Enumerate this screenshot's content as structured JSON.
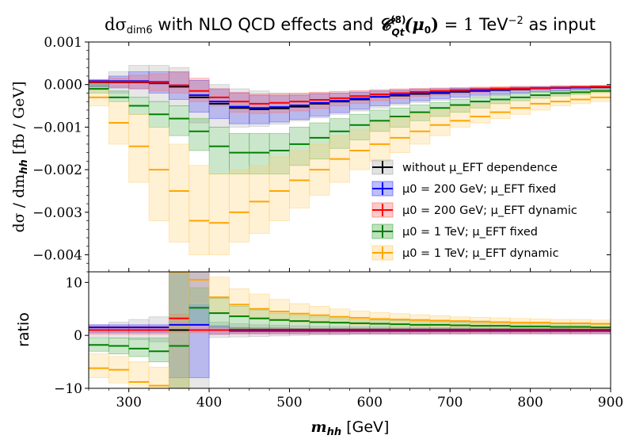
{
  "chart_data": {
    "type": "step-band",
    "title": "dσ_dim6 with NLO QCD effects and C_Qt^(8)(μ0) = 1 TeV^-2 as input",
    "xlabel": "m_hh [GeV]",
    "top_panel": {
      "ylabel": "dσ / dm_hh   [fb / GeV]",
      "ylim": [
        -0.0044,
        0.001
      ],
      "yticks": [
        0.001,
        0.0,
        -0.001,
        -0.002,
        -0.003,
        -0.004
      ],
      "ytick_labels": [
        "0.001",
        "0.000",
        "−0.001",
        "−0.002",
        "−0.003",
        "−0.004"
      ]
    },
    "ratio_panel": {
      "ylabel": "ratio",
      "ylim": [
        -10,
        12
      ],
      "yticks": [
        10,
        0,
        -10
      ],
      "ytick_labels": [
        "10",
        "0",
        "−10"
      ]
    },
    "xlim": [
      250,
      900
    ],
    "xticks": [
      300,
      400,
      500,
      600,
      700,
      800,
      900
    ],
    "xtick_labels": [
      "300",
      "400",
      "500",
      "600",
      "700",
      "800",
      "900"
    ],
    "bin_edges": [
      250,
      275,
      300,
      325,
      350,
      375,
      400,
      425,
      450,
      475,
      500,
      525,
      550,
      575,
      600,
      625,
      650,
      675,
      700,
      725,
      750,
      775,
      800,
      825,
      850,
      875,
      900
    ],
    "series": [
      {
        "name": "without μ_EFT dependence",
        "color": "#000000",
        "band_color": "#aaaaaa",
        "values": [
          5e-05,
          5e-05,
          5e-05,
          3e-05,
          -5e-05,
          -0.0003,
          -0.00045,
          -0.00055,
          -0.00058,
          -0.00056,
          -0.00052,
          -0.00045,
          -0.0004,
          -0.00035,
          -0.00029,
          -0.00026,
          -0.00022,
          -0.0002,
          -0.00017,
          -0.00015,
          -0.00013,
          -0.00011,
          -9e-05,
          -8e-05,
          -7e-05,
          -6e-05
        ],
        "lower": [
          -0.0001,
          -0.0002,
          -0.0003,
          -0.0004,
          -0.0005,
          -0.0009,
          -0.001,
          -0.001,
          -0.00098,
          -0.00093,
          -0.00085,
          -0.00078,
          -0.0007,
          -0.00062,
          -0.00055,
          -0.00048,
          -0.00042,
          -0.00037,
          -0.00032,
          -0.00028,
          -0.00024,
          -0.0002,
          -0.00017,
          -0.00015,
          -0.00013,
          -0.00011
        ],
        "upper": [
          0.0001,
          0.0003,
          0.00045,
          0.00045,
          0.0004,
          0.0001,
          0.0,
          -0.0001,
          -0.00015,
          -0.0002,
          -0.00022,
          -0.0002,
          -0.0002,
          -0.00017,
          -0.00015,
          -0.00014,
          -0.00012,
          -0.0001,
          -9e-05,
          -8e-05,
          -7e-05,
          -6e-05,
          -5e-05,
          -4e-05,
          -3e-05,
          -3e-05
        ],
        "ratio": [
          1,
          1,
          1,
          1,
          1,
          1,
          1,
          1,
          1,
          1,
          1,
          1,
          1,
          1,
          1,
          1,
          1,
          1,
          1,
          1,
          1,
          1,
          1,
          1,
          1,
          1
        ],
        "ratio_lower": [
          -0.3,
          -0.5,
          -0.8,
          -1.2,
          -10,
          -10,
          -0.4,
          -0.3,
          -0.2,
          -0.1,
          0,
          0.1,
          0.1,
          0.2,
          0.2,
          0.2,
          0.2,
          0.25,
          0.25,
          0.3,
          0.3,
          0.3,
          0.3,
          0.3,
          0.3,
          0.3
        ],
        "ratio_upper": [
          2.0,
          2.5,
          3.0,
          3.5,
          12,
          12,
          2.5,
          2.2,
          2.0,
          1.9,
          1.8,
          1.7,
          1.65,
          1.6,
          1.6,
          1.55,
          1.55,
          1.5,
          1.5,
          1.5,
          1.5,
          1.5,
          1.5,
          1.5,
          1.5,
          1.5
        ]
      },
      {
        "name": "μ0 = 200 GeV; μ_EFT fixed",
        "color": "#0000ff",
        "band_color": "#4444ff",
        "values": [
          8e-05,
          8e-05,
          8e-05,
          6e-05,
          -2e-05,
          -0.00025,
          -0.0004,
          -0.00052,
          -0.00055,
          -0.00053,
          -0.00049,
          -0.00043,
          -0.00038,
          -0.00033,
          -0.00028,
          -0.00024,
          -0.0002,
          -0.00018,
          -0.00016,
          -0.00014,
          -0.00012,
          -0.0001,
          -9e-05,
          -8e-05,
          -7e-05,
          -6e-05
        ],
        "lower": [
          -5e-05,
          -8e-05,
          -0.0001,
          -0.0002,
          -0.00035,
          -0.00065,
          -0.0008,
          -0.00092,
          -0.00092,
          -0.00088,
          -0.00082,
          -0.00074,
          -0.00066,
          -0.00058,
          -0.0005,
          -0.00044,
          -0.00038,
          -0.00033,
          -0.00029,
          -0.00025,
          -0.00022,
          -0.00019,
          -0.00016,
          -0.00014,
          -0.00012,
          -0.0001
        ],
        "upper": [
          0.00012,
          0.0002,
          0.0003,
          0.0003,
          0.0003,
          0.0001,
          -0.0001,
          -0.0002,
          -0.00025,
          -0.00026,
          -0.00025,
          -0.00022,
          -0.0002,
          -0.00018,
          -0.00015,
          -0.00013,
          -0.00011,
          -0.0001,
          -9e-05,
          -8e-05,
          -7e-05,
          -6e-05,
          -5e-05,
          -4e-05,
          -3e-05,
          -3e-05
        ],
        "ratio": [
          1.5,
          1.5,
          1.5,
          1.5,
          2.0,
          2.0,
          1.0,
          0.9,
          0.9,
          0.9,
          0.9,
          0.9,
          0.9,
          0.9,
          0.9,
          0.9,
          0.9,
          0.9,
          0.9,
          0.9,
          0.9,
          0.9,
          0.9,
          0.9,
          0.9,
          0.9
        ],
        "ratio_lower": [
          0.5,
          0.5,
          0.5,
          0.5,
          -8,
          -8,
          0.2,
          0.3,
          0.3,
          0.3,
          0.3,
          0.3,
          0.3,
          0.3,
          0.3,
          0.3,
          0.3,
          0.3,
          0.3,
          0.3,
          0.3,
          0.3,
          0.3,
          0.3,
          0.3,
          0.3
        ],
        "ratio_upper": [
          2.0,
          2.0,
          2.0,
          2.0,
          12,
          12,
          1.8,
          1.5,
          1.4,
          1.4,
          1.3,
          1.3,
          1.3,
          1.3,
          1.3,
          1.3,
          1.3,
          1.3,
          1.3,
          1.3,
          1.3,
          1.3,
          1.3,
          1.3,
          1.3,
          1.3
        ]
      },
      {
        "name": "μ0 = 200 GeV; μ_EFT dynamic",
        "color": "#ff0000",
        "band_color": "#ff6666",
        "values": [
          6e-05,
          6e-05,
          6e-05,
          4e-05,
          -2e-05,
          -0.00015,
          -0.0003,
          -0.0004,
          -0.00045,
          -0.00043,
          -0.0004,
          -0.00036,
          -0.00032,
          -0.00027,
          -0.00023,
          -0.0002,
          -0.00017,
          -0.00015,
          -0.00013,
          -0.00011,
          -0.0001,
          -9e-05,
          -8e-05,
          -7e-05,
          -6e-05,
          -5e-05
        ],
        "lower": [
          -3e-05,
          -5e-05,
          -0.0001,
          -0.00015,
          -0.0002,
          -0.0004,
          -0.0005,
          -0.00065,
          -0.00068,
          -0.00066,
          -0.00062,
          -0.00056,
          -0.0005,
          -0.00044,
          -0.00038,
          -0.00033,
          -0.00028,
          -0.00025,
          -0.00022,
          -0.00019,
          -0.00016,
          -0.00014,
          -0.00012,
          -0.0001,
          -9e-05,
          -8e-05
        ],
        "upper": [
          0.0001,
          0.00015,
          0.00022,
          0.00025,
          0.00028,
          0.00015,
          -0.0001,
          -0.00018,
          -0.00022,
          -0.00022,
          -0.0002,
          -0.00018,
          -0.00016,
          -0.00014,
          -0.00012,
          -0.0001,
          -9e-05,
          -8e-05,
          -7e-05,
          -6e-05,
          -5e-05,
          -4e-05,
          -4e-05,
          -3e-05,
          -3e-05,
          -2e-05
        ],
        "ratio": [
          1.0,
          1.0,
          1.0,
          1.0,
          3.2,
          1.0,
          1.0,
          0.8,
          0.8,
          0.8,
          0.8,
          0.8,
          0.8,
          0.8,
          0.8,
          0.8,
          0.8,
          0.8,
          0.8,
          0.8,
          0.8,
          0.8,
          0.8,
          0.8,
          0.8,
          0.8
        ],
        "ratio_lower": [
          0.2,
          0.2,
          0.2,
          0.2,
          0.5,
          0.5,
          0.2,
          0.3,
          0.3,
          0.3,
          0.3,
          0.3,
          0.3,
          0.3,
          0.3,
          0.3,
          0.3,
          0.3,
          0.3,
          0.3,
          0.3,
          0.3,
          0.3,
          0.3,
          0.3,
          0.3
        ],
        "ratio_upper": [
          1.8,
          1.8,
          1.8,
          1.8,
          4.0,
          2.0,
          1.5,
          1.3,
          1.3,
          1.3,
          1.3,
          1.3,
          1.3,
          1.3,
          1.3,
          1.3,
          1.3,
          1.3,
          1.3,
          1.3,
          1.3,
          1.3,
          1.3,
          1.3,
          1.3,
          1.3
        ]
      },
      {
        "name": "μ0 = 1 TeV; μ_EFT fixed",
        "color": "#008000",
        "band_color": "#44aa44",
        "values": [
          -0.0001,
          -0.0003,
          -0.0005,
          -0.0007,
          -0.0008,
          -0.0011,
          -0.00145,
          -0.0016,
          -0.0016,
          -0.00155,
          -0.0014,
          -0.00125,
          -0.0011,
          -0.00095,
          -0.00085,
          -0.00075,
          -0.00065,
          -0.00055,
          -0.00048,
          -0.0004,
          -0.00035,
          -0.0003,
          -0.00025,
          -0.0002,
          -0.00018,
          -0.00015
        ],
        "lower": [
          -0.0002,
          -0.0004,
          -0.0007,
          -0.001,
          -0.0012,
          -0.00155,
          -0.0021,
          -0.0021,
          -0.0021,
          -0.0021,
          -0.0019,
          -0.00175,
          -0.0015,
          -0.0013,
          -0.0011,
          -0.001,
          -0.00085,
          -0.00075,
          -0.00065,
          -0.00055,
          -0.00045,
          -0.00038,
          -0.00032,
          -0.00027,
          -0.00023,
          -0.00019
        ],
        "upper": [
          0.0,
          -0.00015,
          -0.0003,
          -0.0004,
          -0.0005,
          -0.0008,
          -0.001,
          -0.00115,
          -0.00115,
          -0.00115,
          -0.001,
          -0.0009,
          -0.0008,
          -0.0007,
          -0.0006,
          -0.00055,
          -0.00048,
          -0.00042,
          -0.00035,
          -0.0003,
          -0.00025,
          -0.00021,
          -0.00018,
          -0.00015,
          -0.00012,
          -0.0001
        ],
        "ratio": [
          -1.8,
          -2.0,
          -2.5,
          -3.0,
          -2.0,
          5.2,
          4.2,
          3.6,
          3.2,
          2.9,
          2.7,
          2.5,
          2.4,
          2.3,
          2.2,
          2.1,
          2.0,
          2.0,
          1.9,
          1.8,
          1.8,
          1.7,
          1.7,
          1.6,
          1.6,
          1.5
        ],
        "ratio_lower": [
          -3,
          -3.5,
          -4,
          -5,
          -10,
          2.0,
          1.5,
          1.3,
          1.2,
          1.1,
          1.1,
          1.0,
          1.0,
          1.0,
          0.9,
          0.9,
          0.9,
          0.9,
          0.9,
          0.8,
          0.8,
          0.8,
          0.8,
          0.8,
          0.8,
          0.8
        ],
        "ratio_upper": [
          -0.5,
          -0.5,
          -0.5,
          -0.5,
          12,
          9,
          7,
          5.5,
          4.8,
          4.2,
          3.8,
          3.5,
          3.2,
          3.0,
          2.9,
          2.8,
          2.7,
          2.6,
          2.5,
          2.4,
          2.4,
          2.3,
          2.3,
          2.2,
          2.2,
          2.1
        ]
      },
      {
        "name": "μ0 = 1 TeV; μ_EFT dynamic",
        "color": "#ffa500",
        "band_color": "#ffcc66",
        "values": [
          -0.0003,
          -0.0009,
          -0.00145,
          -0.002,
          -0.0025,
          -0.0032,
          -0.00325,
          -0.003,
          -0.00275,
          -0.0025,
          -0.00225,
          -0.002,
          -0.00175,
          -0.00155,
          -0.0014,
          -0.00125,
          -0.0011,
          -0.00095,
          -0.00085,
          -0.00075,
          -0.00065,
          -0.00055,
          -0.00045,
          -0.0004,
          -0.00035,
          -0.0003
        ],
        "lower": [
          -0.0005,
          -0.0014,
          -0.0023,
          -0.0032,
          -0.0037,
          -0.004,
          -0.004,
          -0.0037,
          -0.0035,
          -0.0032,
          -0.0029,
          -0.0026,
          -0.0023,
          -0.002,
          -0.0018,
          -0.0016,
          -0.0014,
          -0.0012,
          -0.001,
          -0.0009,
          -0.0008,
          -0.0007,
          -0.0006,
          -0.0005,
          -0.00045,
          -0.0004
        ],
        "upper": [
          -0.0001,
          -0.0004,
          -0.0007,
          -0.001,
          -0.0014,
          -0.0019,
          -0.0021,
          -0.002,
          -0.0019,
          -0.0017,
          -0.00155,
          -0.0014,
          -0.0012,
          -0.00105,
          -0.0009,
          -0.0008,
          -0.0007,
          -0.0006,
          -0.0005,
          -0.00045,
          -0.0004,
          -0.00035,
          -0.0003,
          -0.00025,
          -0.0002,
          -0.00018
        ],
        "ratio": [
          -6.2,
          -6.5,
          -8.8,
          -9.5,
          12,
          10.5,
          7.2,
          5.8,
          5.0,
          4.5,
          4.1,
          3.8,
          3.5,
          3.3,
          3.1,
          3.0,
          2.9,
          2.8,
          2.7,
          2.6,
          2.5,
          2.4,
          2.4,
          2.3,
          2.3,
          2.2
        ],
        "ratio_lower": [
          -8,
          -9,
          -10,
          -10,
          -10,
          6,
          4.5,
          3.5,
          3.0,
          2.7,
          2.5,
          2.3,
          2.2,
          2.0,
          1.9,
          1.8,
          1.7,
          1.7,
          1.6,
          1.5,
          1.5,
          1.4,
          1.4,
          1.4,
          1.3,
          1.3
        ],
        "ratio_upper": [
          -3.5,
          -4,
          -5,
          -6,
          12,
          12,
          11,
          8.8,
          7.8,
          6.8,
          6.0,
          5.5,
          5.0,
          4.6,
          4.3,
          4.1,
          3.9,
          3.7,
          3.5,
          3.4,
          3.3,
          3.2,
          3.1,
          3.0,
          3.0,
          2.9
        ]
      }
    ],
    "legend": {
      "position": "lower-right",
      "entries": [
        "without μ_EFT dependence",
        "μ0 = 200 GeV; μ_EFT fixed",
        "μ0 = 200 GeV; μ_EFT dynamic",
        "μ0 = 1 TeV; μ_EFT fixed",
        "μ0 = 1 TeV; μ_EFT dynamic"
      ]
    }
  }
}
